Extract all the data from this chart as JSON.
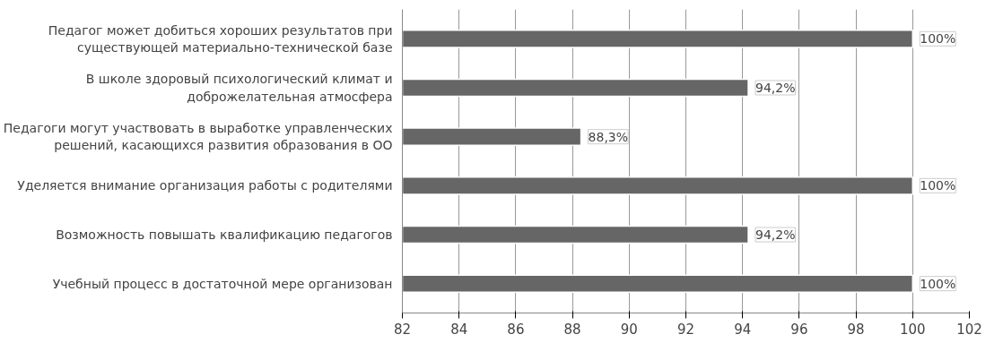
{
  "chart_data": {
    "type": "bar",
    "orientation": "horizontal",
    "categories": [
      "Педагог может добиться хороших результатов при существующей материально-технической базе",
      "В школе здоровый психологический климат и доброжелательная атмосфера",
      "Педагоги могут участвовать в выработке управленческих решений, касающихся развития образования в ОО",
      "Уделяется внимание организация работы с родителями",
      "Возможность повышать квалификацию педагогов",
      "Учебный процесс в достаточной мере организован"
    ],
    "values": [
      100,
      94.2,
      88.3,
      100,
      94.2,
      100
    ],
    "value_labels": [
      "100%",
      "94,2%",
      "88,3%",
      "100%",
      "94,2%",
      "100%"
    ],
    "color": "#666666",
    "xlim": [
      82,
      102
    ],
    "xticks": [
      82,
      84,
      86,
      88,
      90,
      92,
      94,
      96,
      98,
      100,
      102
    ],
    "grid": "x"
  }
}
